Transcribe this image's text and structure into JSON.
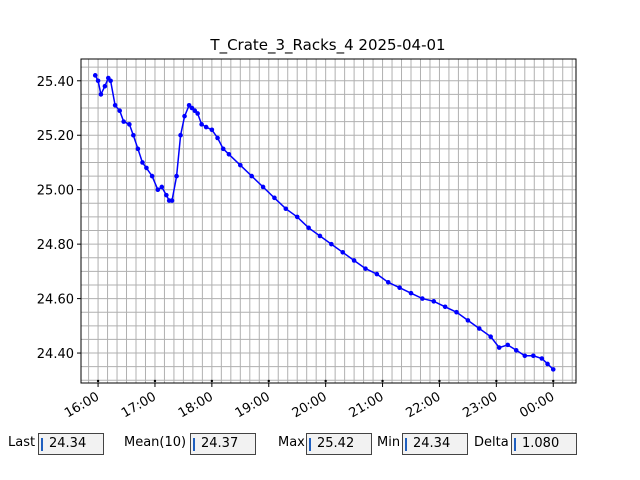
{
  "chart_data": {
    "type": "line",
    "title": "T_Crate_3_Racks_4 2025-04-01",
    "xlabel": "",
    "ylabel": "",
    "x_tick_labels": [
      "16:00",
      "17:00",
      "18:00",
      "19:00",
      "20:00",
      "21:00",
      "22:00",
      "23:00",
      "00:00"
    ],
    "y_tick_labels": [
      "24.40",
      "24.60",
      "24.80",
      "25.00",
      "25.20",
      "25.40"
    ],
    "y_ticks": [
      24.4,
      24.6,
      24.8,
      25.0,
      25.2,
      25.4
    ],
    "xlim_hours": [
      15.7,
      24.4
    ],
    "ylim": [
      24.29,
      25.48
    ],
    "grid": true,
    "line_color": "#0000ff",
    "series": [
      {
        "x_hours": [
          15.95,
          16.0,
          16.05,
          16.12,
          16.18,
          16.22,
          16.3,
          16.38,
          16.45,
          16.55,
          16.62,
          16.7,
          16.78,
          16.85,
          16.95,
          17.05,
          17.12,
          17.2,
          17.25,
          17.3,
          17.38,
          17.45,
          17.52,
          17.6,
          17.65,
          17.7,
          17.75,
          17.82,
          17.9,
          18.0,
          18.1,
          18.2,
          18.3,
          18.5,
          18.7,
          18.9,
          19.1,
          19.3,
          19.5,
          19.7,
          19.9,
          20.1,
          20.3,
          20.5,
          20.7,
          20.9,
          21.1,
          21.3,
          21.5,
          21.7,
          21.9,
          22.1,
          22.3,
          22.5,
          22.7,
          22.9,
          23.05,
          23.2,
          23.35,
          23.5,
          23.65,
          23.8,
          23.9,
          24.0
        ],
        "y": [
          25.42,
          25.4,
          25.35,
          25.38,
          25.41,
          25.4,
          25.31,
          25.29,
          25.25,
          25.24,
          25.2,
          25.15,
          25.1,
          25.08,
          25.05,
          25.0,
          25.01,
          24.98,
          24.96,
          24.96,
          25.05,
          25.2,
          25.27,
          25.31,
          25.3,
          25.29,
          25.28,
          25.24,
          25.23,
          25.22,
          25.19,
          25.15,
          25.13,
          25.09,
          25.05,
          25.01,
          24.97,
          24.93,
          24.9,
          24.86,
          24.83,
          24.8,
          24.77,
          24.74,
          24.71,
          24.69,
          24.66,
          24.64,
          24.62,
          24.6,
          24.59,
          24.57,
          24.55,
          24.52,
          24.49,
          24.46,
          24.42,
          24.43,
          24.41,
          24.39,
          24.39,
          24.38,
          24.36,
          24.34
        ]
      }
    ]
  },
  "stats": [
    {
      "label": "Last",
      "value": "24.34"
    },
    {
      "label": "Mean(10)",
      "value": "24.37"
    },
    {
      "label": "Max",
      "value": "25.42"
    },
    {
      "label": "Min",
      "value": "24.34"
    },
    {
      "label": "Delta",
      "value": "1.080"
    }
  ]
}
